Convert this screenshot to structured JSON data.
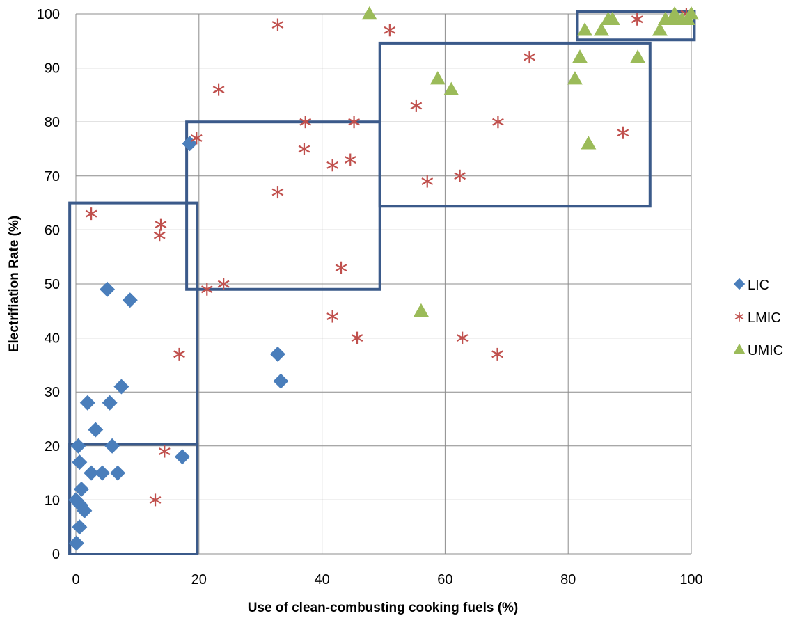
{
  "chart_data": {
    "type": "scatter",
    "title": "",
    "xlabel": "Use of clean-combusting cooking fuels (%)",
    "ylabel": "Electrifiation Rate (%)",
    "xlim": [
      0,
      100
    ],
    "ylim": [
      0,
      100
    ],
    "x_ticks": [
      0,
      20,
      40,
      60,
      80,
      100
    ],
    "y_ticks": [
      0,
      10,
      20,
      30,
      40,
      50,
      60,
      70,
      80,
      90,
      100
    ],
    "grid": true,
    "legend_position": "right",
    "series": [
      {
        "name": "LIC",
        "marker": "diamond",
        "color": "#4a7ebb",
        "points": [
          [
            0.1,
            2
          ],
          [
            0.6,
            5
          ],
          [
            0,
            10
          ],
          [
            0.8,
            9
          ],
          [
            1.4,
            8
          ],
          [
            0.9,
            12
          ],
          [
            0.6,
            17
          ],
          [
            0.4,
            20
          ],
          [
            2.5,
            15
          ],
          [
            4.3,
            15
          ],
          [
            6.8,
            15
          ],
          [
            5.9,
            20
          ],
          [
            3.2,
            23
          ],
          [
            1.9,
            28
          ],
          [
            5.5,
            28
          ],
          [
            7.4,
            31
          ],
          [
            5.1,
            49
          ],
          [
            8.8,
            47
          ],
          [
            17.3,
            18
          ],
          [
            18.5,
            76
          ],
          [
            32.8,
            37
          ],
          [
            33.3,
            32
          ]
        ]
      },
      {
        "name": "LMIC",
        "marker": "asterisk",
        "color": "#c0504d",
        "points": [
          [
            2.5,
            63
          ],
          [
            13.8,
            61
          ],
          [
            13.6,
            59
          ],
          [
            16.8,
            37
          ],
          [
            14.4,
            19
          ],
          [
            12.9,
            10
          ],
          [
            19.6,
            77
          ],
          [
            23.2,
            86
          ],
          [
            21.3,
            49
          ],
          [
            24,
            50
          ],
          [
            32.8,
            67
          ],
          [
            32.8,
            98
          ],
          [
            37.3,
            80
          ],
          [
            37.1,
            75
          ],
          [
            41.7,
            72
          ],
          [
            44.6,
            73
          ],
          [
            43.1,
            53
          ],
          [
            41.7,
            44
          ],
          [
            45.2,
            80
          ],
          [
            45.7,
            40
          ],
          [
            51,
            97
          ],
          [
            55.3,
            83
          ],
          [
            57.1,
            69
          ],
          [
            62.4,
            70
          ],
          [
            62.8,
            40
          ],
          [
            68.5,
            37
          ],
          [
            68.6,
            80
          ],
          [
            73.7,
            92
          ],
          [
            88.9,
            78
          ],
          [
            91.2,
            99
          ],
          [
            99.2,
            100
          ]
        ]
      },
      {
        "name": "UMIC",
        "marker": "triangle",
        "color": "#9bbb59",
        "points": [
          [
            47.7,
            100
          ],
          [
            58.8,
            88
          ],
          [
            61,
            86
          ],
          [
            56.1,
            45
          ],
          [
            81.1,
            88
          ],
          [
            81.9,
            92
          ],
          [
            82.7,
            97
          ],
          [
            83.3,
            76
          ],
          [
            85.4,
            97
          ],
          [
            86.5,
            99
          ],
          [
            87.2,
            99
          ],
          [
            91.3,
            92
          ],
          [
            94.9,
            97
          ],
          [
            95.8,
            99
          ],
          [
            96.9,
            99
          ],
          [
            97.3,
            100
          ],
          [
            98.5,
            99
          ],
          [
            99.4,
            99
          ],
          [
            100,
            100
          ]
        ]
      }
    ],
    "boxes": [
      {
        "x": [
          -1,
          19.7
        ],
        "y": [
          0,
          65
        ]
      },
      {
        "x": [
          -1,
          19.7
        ],
        "y": [
          0,
          20.3
        ]
      },
      {
        "x": [
          18,
          49.4
        ],
        "y": [
          49,
          80
        ]
      },
      {
        "x": [
          49.4,
          93.3
        ],
        "y": [
          64.4,
          94.6
        ]
      },
      {
        "x": [
          81.5,
          100.5
        ],
        "y": [
          95.2,
          100.4
        ]
      }
    ]
  }
}
